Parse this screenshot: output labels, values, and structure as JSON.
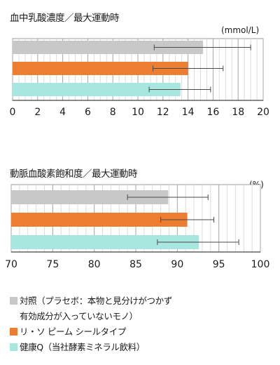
{
  "chart_data": [
    {
      "type": "bar",
      "orientation": "horizontal",
      "title": "血中乳酸濃度／最大運動時",
      "unit": "(mmol/L)",
      "xlim": [
        0,
        20
      ],
      "ticks": [
        0,
        2,
        4,
        6,
        8,
        10,
        12,
        14,
        16,
        18,
        20
      ],
      "grid": true,
      "series": [
        {
          "name": "対照（プラセボ：本物と見分けがつかず有効成分が入っていないモノ）",
          "value": 15.2,
          "err_low": 11.3,
          "err_high": 19.0,
          "color": "#c8c8c8"
        },
        {
          "name": "リ・ソ ピーム シールタイプ",
          "value": 14.0,
          "err_low": 11.2,
          "err_high": 16.8,
          "color": "#ed7d31"
        },
        {
          "name": "健康Q（当社酵素ミネラル飲料）",
          "value": 13.4,
          "err_low": 10.9,
          "err_high": 15.8,
          "color": "#a8e6e0"
        }
      ]
    },
    {
      "type": "bar",
      "orientation": "horizontal",
      "title": "動脈血酸素飽和度／最大運動時",
      "unit": "(%)",
      "xlim": [
        70,
        100
      ],
      "ticks": [
        70,
        75,
        80,
        85,
        90,
        95,
        100
      ],
      "grid": true,
      "series": [
        {
          "name": "対照（プラセボ：本物と見分けがつかず有効成分が入っていないモノ）",
          "value": 88.9,
          "err_low": 84.0,
          "err_high": 93.7,
          "color": "#c8c8c8"
        },
        {
          "name": "リ・ソ ピーム シールタイプ",
          "value": 91.2,
          "err_low": 88.0,
          "err_high": 94.4,
          "color": "#ed7d31"
        },
        {
          "name": "健康Q（当社酵素ミネラル飲料）",
          "value": 92.6,
          "err_low": 87.6,
          "err_high": 97.4,
          "color": "#a8e6e0"
        }
      ]
    }
  ],
  "legend": [
    {
      "lines": [
        "対照（プラセボ：本物と見分けがつかず",
        "有効成分が入っていないモノ）"
      ],
      "color": "#c8c8c8"
    },
    {
      "lines": [
        "リ・ソ ピーム シールタイプ"
      ],
      "color": "#ed7d31"
    },
    {
      "lines": [
        "健康Q（当社酵素ミネラル飲料）"
      ],
      "color": "#a8e6e0"
    }
  ]
}
